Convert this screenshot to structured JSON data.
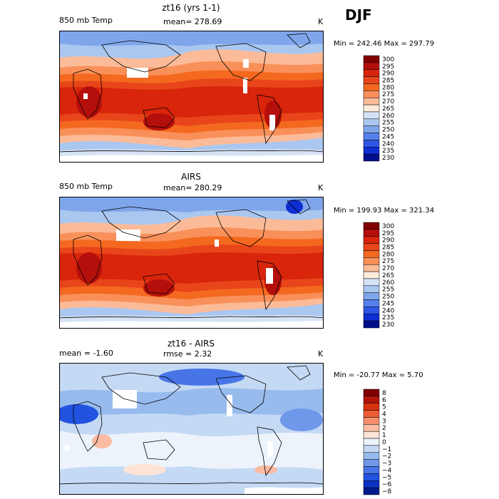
{
  "season": "DJF",
  "panels": [
    {
      "title": "zt16 (yrs 1-1)",
      "left": "850 mb Temp",
      "mid": "mean= 278.69",
      "units": "K",
      "minmax": "Min = 242.46 Max = 297.79",
      "kind": "abs",
      "levels": [
        "300",
        "295",
        "290",
        "285",
        "280",
        "275",
        "270",
        "265",
        "260",
        "255",
        "250",
        "245",
        "240",
        "235",
        "230"
      ]
    },
    {
      "title": "AIRS",
      "left": "850 mb Temp",
      "mid": "mean= 280.29",
      "units": "K",
      "minmax": "Min = 199.93 Max = 321.34",
      "kind": "abs",
      "levels": [
        "300",
        "295",
        "290",
        "285",
        "280",
        "275",
        "270",
        "265",
        "260",
        "255",
        "250",
        "245",
        "240",
        "235",
        "230"
      ]
    },
    {
      "title": "zt16 - AIRS",
      "left": "mean =   -1.60",
      "mid": "rmse =    2.32",
      "units": "K",
      "minmax": "Min = -20.77 Max =   5.70",
      "kind": "diff",
      "levels": [
        "8",
        "6",
        "5",
        "4",
        "3",
        "2",
        "1",
        "0",
        "−1",
        "−2",
        "−3",
        "−4",
        "−5",
        "−6",
        "−8"
      ]
    }
  ],
  "chart_data": [
    {
      "type": "heatmap",
      "title": "zt16 (yrs 1-1)",
      "field": "850 mb Temp",
      "units": "K",
      "mean": 278.69,
      "min": 242.46,
      "max": 297.79,
      "contour_levels": [
        230,
        235,
        240,
        245,
        250,
        255,
        260,
        265,
        270,
        275,
        280,
        285,
        290,
        295,
        300
      ]
    },
    {
      "type": "heatmap",
      "title": "AIRS",
      "field": "850 mb Temp",
      "units": "K",
      "mean": 280.29,
      "min": 199.93,
      "max": 321.34,
      "contour_levels": [
        230,
        235,
        240,
        245,
        250,
        255,
        260,
        265,
        270,
        275,
        280,
        285,
        290,
        295,
        300
      ]
    },
    {
      "type": "heatmap",
      "title": "zt16 - AIRS",
      "units": "K",
      "mean": -1.6,
      "rmse": 2.32,
      "min": -20.77,
      "max": 5.7,
      "contour_levels": [
        -8,
        -6,
        -5,
        -4,
        -3,
        -2,
        -1,
        0,
        1,
        2,
        3,
        4,
        5,
        6,
        8
      ]
    }
  ],
  "colors": {
    "abs": [
      "#800000",
      "#b40f0b",
      "#d8250c",
      "#e8461a",
      "#f4691f",
      "#f9905a",
      "#fcbb98",
      "#fdebdc",
      "#d6e3f6",
      "#aac7f0",
      "#7fa6eb",
      "#5581ec",
      "#2e57e6",
      "#0d2ed2",
      "#000e8c"
    ],
    "diff": [
      "#800000",
      "#b21409",
      "#d8320f",
      "#ed5c34",
      "#f78f6e",
      "#fbbba2",
      "#fde4d7",
      "#ecf3fb",
      "#c4d9f3",
      "#98bbee",
      "#6f98ea",
      "#4775e8",
      "#2152e0",
      "#0b31c4",
      "#001a8c"
    ],
    "coast": "#000000",
    "missing": "#ffffff"
  }
}
